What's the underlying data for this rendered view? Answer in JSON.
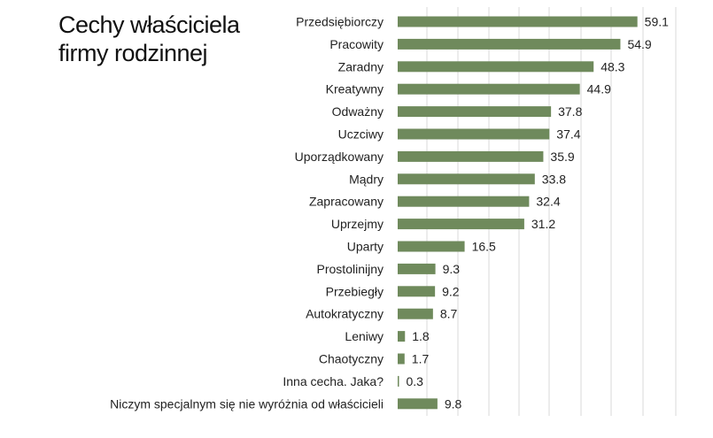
{
  "chart_data": {
    "type": "bar",
    "orientation": "horizontal",
    "title": "Cechy  właściciela firmy rodzinnej",
    "categories": [
      "Przedsiębiorczy",
      "Pracowity",
      "Zaradny",
      "Kreatywny",
      "Odważny",
      "Uczciwy",
      "Uporządkowany",
      "Mądry",
      "Zapracowany",
      "Uprzejmy",
      "Uparty",
      "Prostolinijny",
      "Przebiegły",
      "Autokratyczny",
      "Leniwy",
      "Chaotyczny",
      "Inna cecha. Jaka?",
      "Niczym specjalnym się nie wyróżnia od właścicieli"
    ],
    "values": [
      59.1,
      54.9,
      48.3,
      44.9,
      37.8,
      37.4,
      35.9,
      33.8,
      32.4,
      31.2,
      16.5,
      9.3,
      9.2,
      8.7,
      1.8,
      1.7,
      0.3,
      9.8
    ],
    "xlim": [
      0,
      70
    ],
    "grid": true,
    "bar_color": "#6f8a5c"
  }
}
